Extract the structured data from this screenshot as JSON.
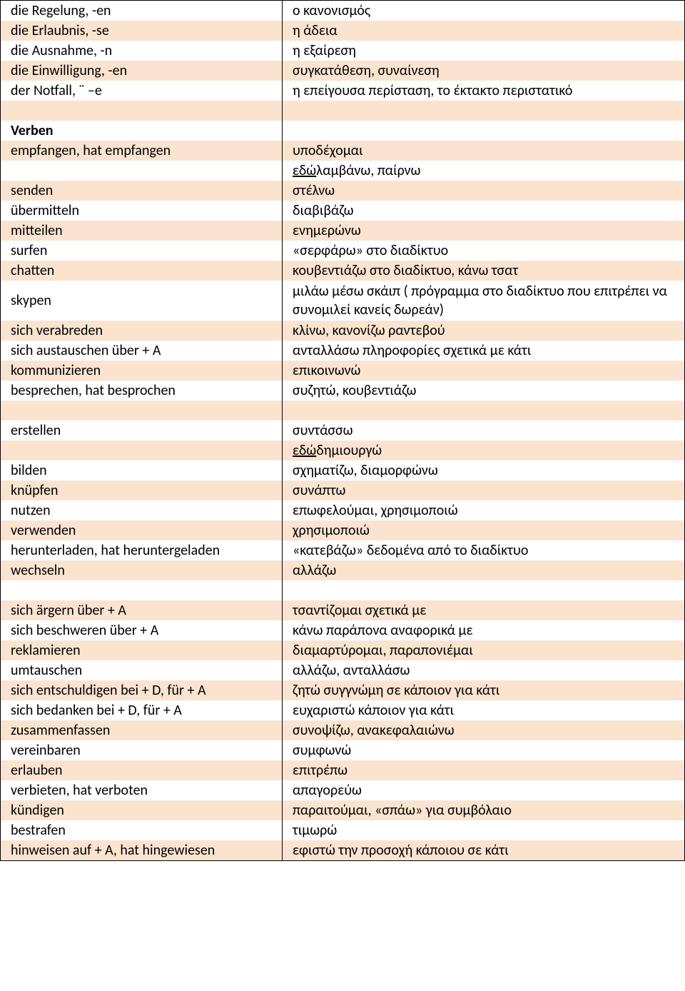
{
  "rows": [
    {
      "left": "die Regelung, -en",
      "right": "ο κανονισμός"
    },
    {
      "left": "die Erlaubnis, -se",
      "right": "η άδεια"
    },
    {
      "left": "die Ausnahme, -n",
      "right": "η εξαίρεση"
    },
    {
      "left": "die Einwilligung, -en",
      "right": "συγκατάθεση, συναίνεση"
    },
    {
      "left": "der Notfall, ¨ –e",
      "right": "η επείγουσα περίσταση, το έκτακτο περιστατικό"
    },
    {
      "left": "",
      "right": ""
    },
    {
      "left": "Verben",
      "right": "",
      "leftBold": true
    },
    {
      "left": "empfangen, hat empfangen",
      "right": "υποδέχομαι"
    },
    {
      "left": "",
      "right": "εδώ  λαμβάνω, παίρνω",
      "rightUnderlinePrefix": "εδώ",
      "rightRest": "  λαμβάνω, παίρνω"
    },
    {
      "left": "senden",
      "right": "στέλνω"
    },
    {
      "left": "übermitteln",
      "right": "διαβιβάζω"
    },
    {
      "left": "mitteilen",
      "right": "ενημερώνω"
    },
    {
      "left": "surfen",
      "right": "«σερφάρω» στο διαδίκτυο"
    },
    {
      "left": "chatten",
      "right": "κουβεντιάζω στο διαδίκτυο, κάνω τσατ"
    },
    {
      "left": "skypen",
      "right": "μιλάω μέσω σκάιπ ( πρόγραμμα στο διαδίκτυο που επιτρέπει να συνομιλεί κανείς δωρεάν)",
      "multiline": true
    },
    {
      "left": "sich verabreden",
      "right": "κλίνω, κανονίζω ραντεβού"
    },
    {
      "left": "sich austauschen über + A",
      "right": "ανταλλάσω πληροφορίες σχετικά με κάτι"
    },
    {
      "left": "kommunizieren",
      "right": "επικοινωνώ"
    },
    {
      "left": "besprechen, hat besprochen",
      "right": "συζητώ, κουβεντιάζω"
    },
    {
      "left": "",
      "right": ""
    },
    {
      "left": "erstellen",
      "right": "συντάσσω"
    },
    {
      "left": "",
      "right": "εδώ δημιουργώ",
      "rightUnderlinePrefix": "εδώ",
      "rightRest": " δημιουργώ"
    },
    {
      "left": "bilden",
      "right": "σχηματίζω, διαμορφώνω"
    },
    {
      "left": "knüpfen",
      "right": "συνάπτω"
    },
    {
      "left": "nutzen",
      "right": "επωφελούμαι, χρησιμοποιώ"
    },
    {
      "left": "verwenden",
      "right": "χρησιμοποιώ"
    },
    {
      "left": "herunterladen, hat heruntergeladen",
      "right": "«κατεβάζω» δεδομένα από το διαδίκτυο"
    },
    {
      "left": "wechseln",
      "right": "αλλάζω"
    },
    {
      "left": "",
      "right": ""
    },
    {
      "left": "sich ärgern über + A",
      "right": "τσαντίζομαι σχετικά με"
    },
    {
      "left": "sich beschweren über + A",
      "right": "κάνω παράπονα αναφορικά με"
    },
    {
      "left": "reklamieren",
      "right": "διαμαρτύρομαι, παραπονιέμαι"
    },
    {
      "left": "umtauschen",
      "right": "αλλάζω, ανταλλάσω"
    },
    {
      "left": "sich entschuldigen bei + D, für + A",
      "right": "ζητώ συγγνώμη σε κάποιον για κάτι"
    },
    {
      "left": "sich bedanken bei + D, für + A",
      "right": "ευχαριστώ κάποιον για κάτι"
    },
    {
      "left": "zusammenfassen",
      "right": "συνοψίζω, ανακεφαλαιώνω"
    },
    {
      "left": "vereinbaren",
      "right": "συμφωνώ"
    },
    {
      "left": "erlauben",
      "right": "επιτρέπω"
    },
    {
      "left": "verbieten, hat verboten",
      "right": "απαγορεύω"
    },
    {
      "left": "kündigen",
      "right": "παραιτούμαι, «σπάω» για συμβόλαιο"
    },
    {
      "left": "bestrafen",
      "right": "τιμωρώ"
    },
    {
      "left": "hinweisen auf + A, hat hingewiesen",
      "right": "εφιστώ την προσοχή κάποιου σε κάτι"
    }
  ],
  "styling": {
    "oddRowColor": "#ffffff",
    "evenRowColor": "#fae4cf",
    "borderColor": "#000000",
    "fontFamily": "Calibri, Arial, sans-serif",
    "fontSize": 20,
    "leftColWidth": 395,
    "totalWidth": 960
  }
}
